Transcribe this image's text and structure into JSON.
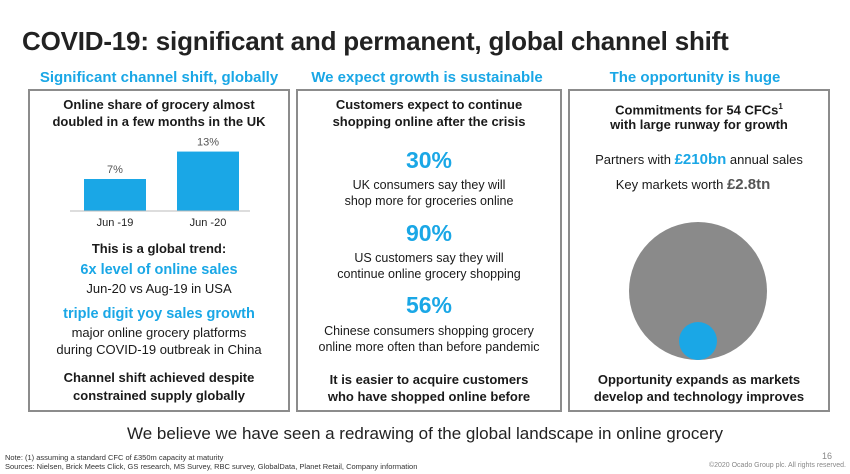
{
  "slide": {
    "title": "COVID-19: significant and permanent, global channel shift",
    "tagline": "We believe we have seen a redrawing of the global landscape in online grocery",
    "page_number": "16",
    "note": "Note: (1) assuming a standard CFC of £350m capacity at maturity",
    "sources": "Sources: Nielsen, Brick Meets Click, GS research, MS Survey, RBC survey, GlobalData, Planet Retail, Company information",
    "copyright": "©2020 Ocado Group plc. All rights reserved."
  },
  "col1": {
    "heading": "Significant channel shift, globally",
    "box_title_1": "Online share of grocery almost",
    "box_title_2": "doubled in a few months in the UK",
    "global_trend": "This is a global trend:",
    "stat1_headline": "6x level of online sales",
    "stat1_sub": "Jun-20 vs Aug-19 in USA",
    "stat2_headline": "triple digit yoy sales growth",
    "stat2_sub_1": "major online grocery platforms",
    "stat2_sub_2": "during COVID-19 outbreak in China",
    "footer_1": "Channel shift achieved despite",
    "footer_2": "constrained supply globally"
  },
  "chart_data": {
    "type": "bar",
    "categories": [
      "Jun -19",
      "Jun -20"
    ],
    "values": [
      7,
      13
    ],
    "data_labels": [
      "7%",
      "13%"
    ],
    "ylim": [
      0,
      14
    ],
    "color": "#1aa7e6"
  },
  "col2": {
    "heading": "We expect growth is sustainable",
    "box_title_1": "Customers expect to continue",
    "box_title_2": "shopping online after the crisis",
    "stats": [
      {
        "value": "30%",
        "line1": "UK consumers say they will",
        "line2": "shop more for groceries online"
      },
      {
        "value": "90%",
        "line1": "US customers say they will",
        "line2": "continue online grocery shopping"
      },
      {
        "value": "56%",
        "line1": "Chinese consumers shopping grocery",
        "line2": "online more often than before pandemic"
      }
    ],
    "footer_1": "It is easier to acquire customers",
    "footer_2": "who have shopped online before"
  },
  "col3": {
    "heading": "The opportunity is huge",
    "box_title_1": "Commitments for 54 CFCs",
    "box_title_sup": "1",
    "box_title_2": "with large runway for growth",
    "partners_prefix": "Partners with ",
    "partners_value": "£210bn",
    "partners_suffix": " annual sales",
    "markets_prefix": "Key markets worth ",
    "markets_value": "£2.8tn",
    "footer_1": "Opportunity expands as markets",
    "footer_2": "develop and technology improves",
    "colors": {
      "large_circle": "#8a8a8a",
      "small_circle": "#1aa7e6"
    }
  }
}
